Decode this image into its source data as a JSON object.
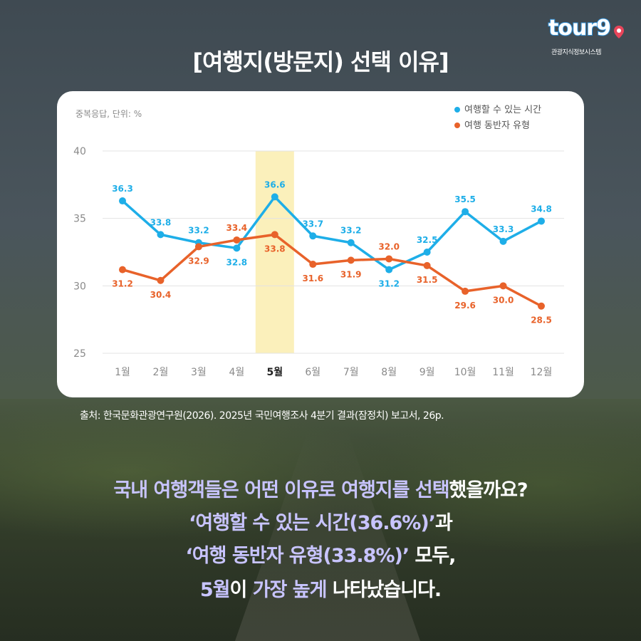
{
  "logo": {
    "word": "tour9",
    "sub": "관광지식정보시스템"
  },
  "title": "[여행지(방문지) 선택 이유]",
  "chart_note": "중복응답, 단위: %",
  "chart_data": {
    "type": "line",
    "categories": [
      "1월",
      "2월",
      "3월",
      "4월",
      "5월",
      "6월",
      "7월",
      "8월",
      "9월",
      "10월",
      "11월",
      "12월"
    ],
    "highlight_category": "5월",
    "ylim": [
      25,
      40
    ],
    "yticks": [
      "25",
      "30",
      "35",
      "40"
    ],
    "series": [
      {
        "name": "여행할 수 있는 시간",
        "color": "#1eaee8",
        "values": [
          36.3,
          33.8,
          33.2,
          32.8,
          36.6,
          33.7,
          33.2,
          31.2,
          32.5,
          35.5,
          33.3,
          34.8
        ]
      },
      {
        "name": "여행 동반자 유형",
        "color": "#e8622a",
        "values": [
          31.2,
          30.4,
          32.9,
          33.4,
          33.8,
          31.6,
          31.9,
          32.0,
          31.5,
          29.6,
          30.0,
          28.5
        ]
      }
    ],
    "legend_position": "top-right",
    "grid": true
  },
  "source": "출처: 한국문화관광연구원(2026). 2025년 국민여행조사 4분기 결과(잠정치) 보고서, 26p.",
  "message": {
    "l1_a": "국내 여행객들은 어떤 이유로 여행지를 선택",
    "l1_b": "했을까요?",
    "l2_a": "‘여행할 수 있는 시간(36.6%)’",
    "l2_b": "과",
    "l3_a": "‘여행 동반자 유형(33.8%)’",
    "l3_b": " 모두,",
    "l4_a": "5월",
    "l4_b": "이 ",
    "l4_c": "가장 높게",
    "l4_d": " 나타났습니다."
  }
}
